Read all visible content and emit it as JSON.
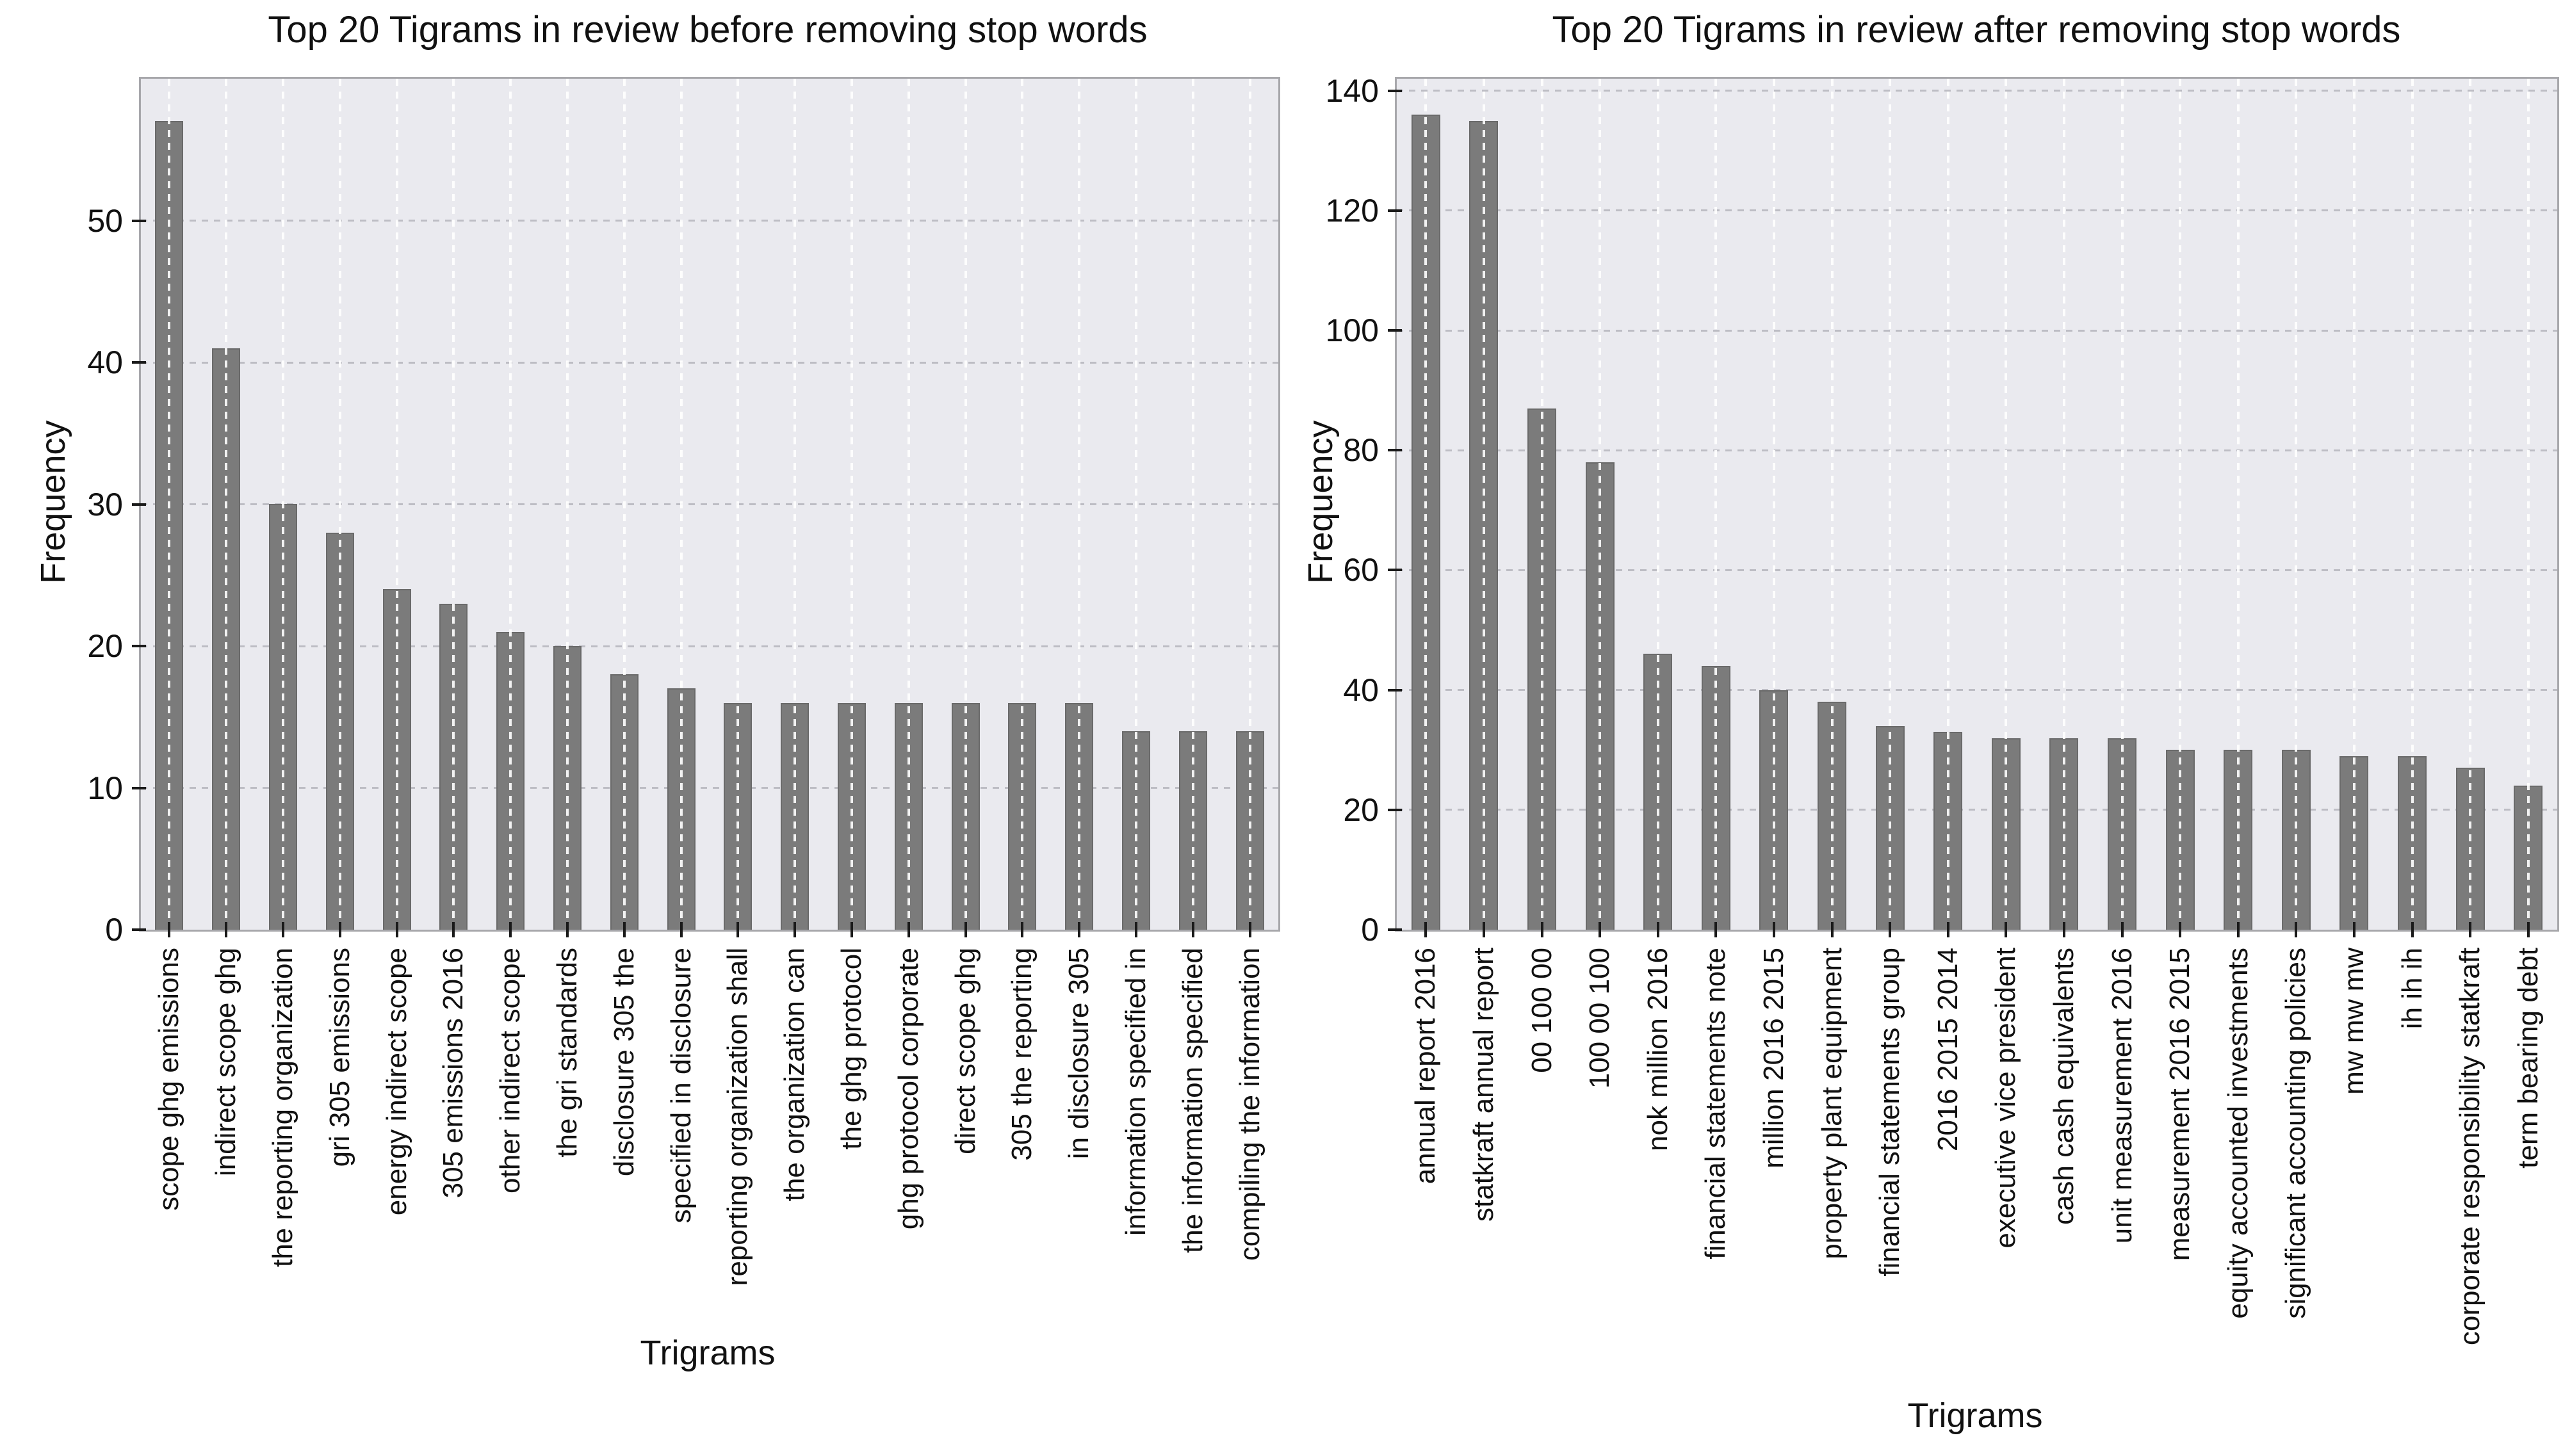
{
  "style": {
    "figure_bg": "#ffffff",
    "plot_bg": "#eaeaef",
    "bar_color": "#7b7b7b",
    "bar_edge_color": "#6a6a6a",
    "vertical_grid_color": "#ffffff",
    "horizontal_grid_color": "#bdbdc4",
    "spine_color": "#a7a7ab",
    "text_color": "#111111"
  },
  "chart_data": [
    {
      "type": "bar",
      "title": "Top 20 Tigrams in review before removing stop words",
      "xlabel": "Trigrams",
      "ylabel": "Frequency",
      "grid": true,
      "legend_position": "none",
      "ylim": [
        0,
        60
      ],
      "yticks": [
        0,
        10,
        20,
        30,
        40,
        50
      ],
      "categories": [
        "scope ghg emissions",
        "indirect scope ghg",
        "the reporting organization",
        "gri 305 emissions",
        "energy indirect scope",
        "305 emissions 2016",
        "other indirect scope",
        "the gri standards",
        "disclosure 305 the",
        "specified in disclosure",
        "reporting organization shall",
        "the organization can",
        "the ghg protocol",
        "ghg protocol corporate",
        "direct scope ghg",
        "305 the reporting",
        "in disclosure 305",
        "information specified in",
        "the information specified",
        "compiling the information"
      ],
      "values": [
        57,
        41,
        30,
        28,
        24,
        23,
        21,
        20,
        18,
        17,
        16,
        16,
        16,
        16,
        16,
        16,
        16,
        14,
        14,
        14
      ]
    },
    {
      "type": "bar",
      "title": "Top 20 Tigrams in review after removing stop words",
      "xlabel": "Trigrams",
      "ylabel": "Frequency",
      "grid": true,
      "legend_position": "none",
      "ylim": [
        0,
        142
      ],
      "yticks": [
        0,
        20,
        40,
        60,
        80,
        100,
        120,
        140
      ],
      "categories": [
        "annual report 2016",
        "statkraft annual report",
        "00 100 00",
        "100 00 100",
        "nok million 2016",
        "financial statements note",
        "million 2016 2015",
        "property plant equipment",
        "financial statements group",
        "2016 2015 2014",
        "executive vice president",
        "cash cash equivalents",
        "unit measurement 2016",
        "measurement 2016 2015",
        "equity accounted investments",
        "significant accounting policies",
        "mw mw mw",
        "ih ih ih",
        "corporate responsibility statkraft",
        "term bearing debt"
      ],
      "values": [
        136,
        135,
        87,
        78,
        46,
        44,
        40,
        38,
        34,
        33,
        32,
        32,
        32,
        30,
        30,
        30,
        29,
        29,
        27,
        24
      ]
    }
  ]
}
